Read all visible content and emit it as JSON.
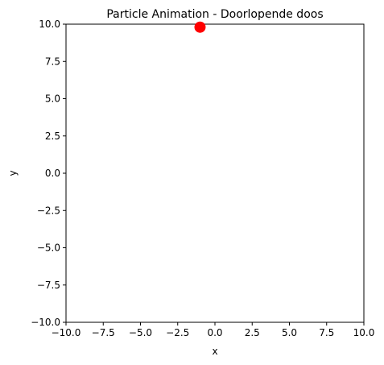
{
  "chart_data": {
    "type": "scatter",
    "title": "Particle Animation - Doorlopende doos",
    "xlabel": "x",
    "ylabel": "y",
    "xlim": [
      -10,
      10
    ],
    "ylim": [
      -10,
      10
    ],
    "x_ticks": [
      -10.0,
      -7.5,
      -5.0,
      -2.5,
      0.0,
      2.5,
      5.0,
      7.5,
      10.0
    ],
    "y_ticks": [
      -10.0,
      -7.5,
      -5.0,
      -2.5,
      0.0,
      2.5,
      5.0,
      7.5,
      10.0
    ],
    "x_tick_labels": [
      "−10.0",
      "−7.5",
      "−5.0",
      "−2.5",
      "0.0",
      "2.5",
      "5.0",
      "7.5",
      "10.0"
    ],
    "y_tick_labels": [
      "−10.0",
      "−7.5",
      "−5.0",
      "−2.5",
      "0.0",
      "2.5",
      "5.0",
      "7.5",
      "10.0"
    ],
    "grid": false,
    "series": [
      {
        "points": [
          {
            "x": -1.0,
            "y": 9.8
          }
        ],
        "color": "#ff0000"
      }
    ]
  }
}
